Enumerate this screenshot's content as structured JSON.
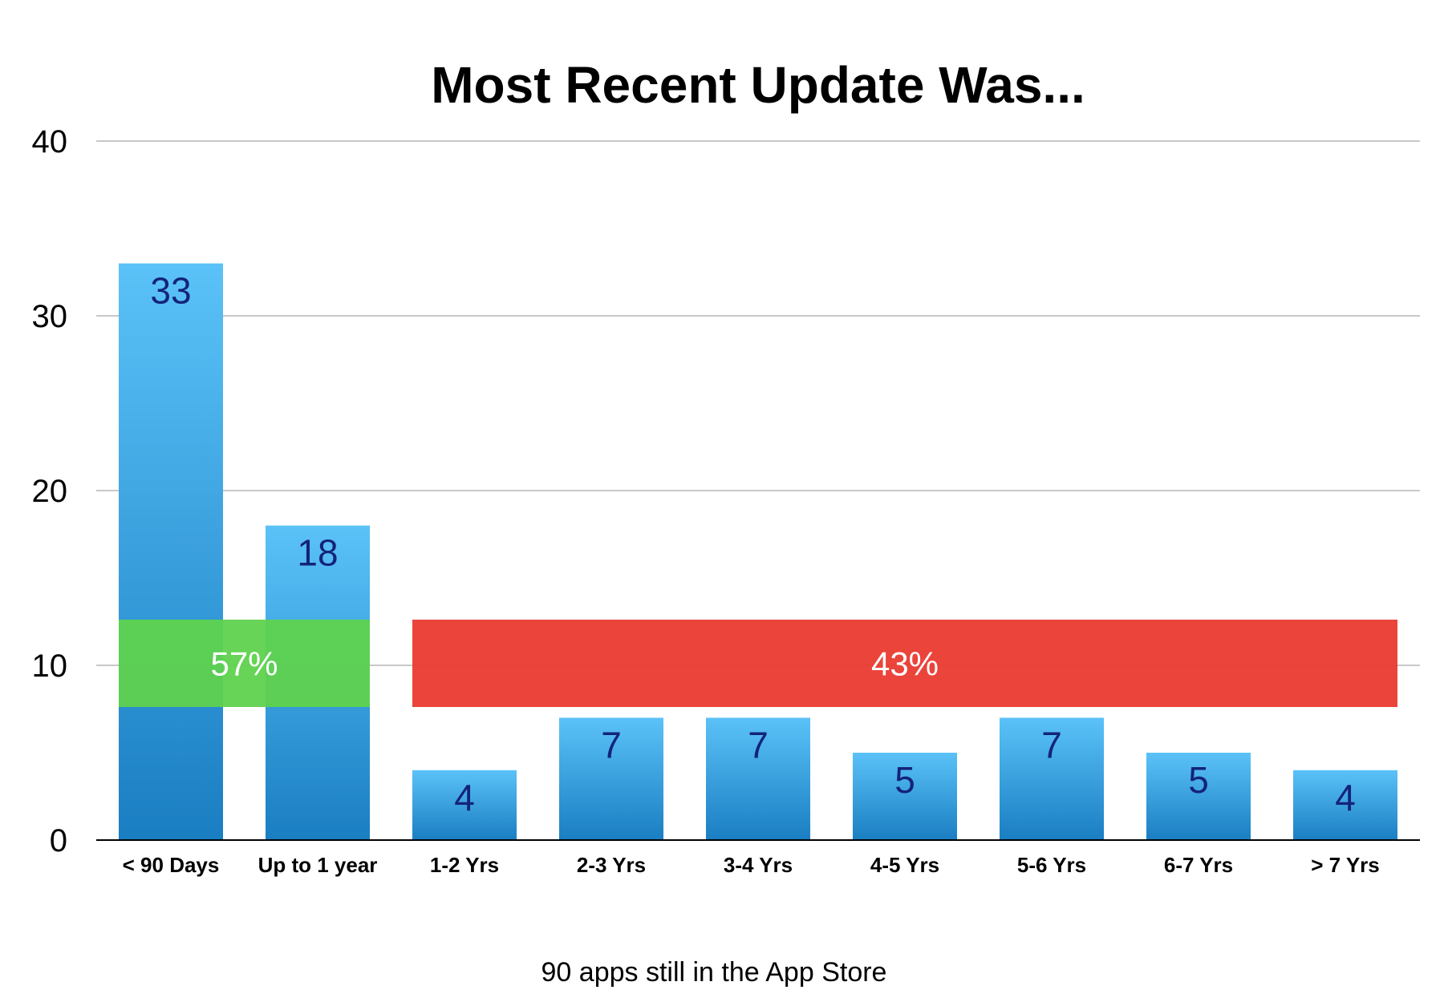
{
  "chart_data": {
    "type": "bar",
    "title": "Most Recent Update Was...",
    "categories": [
      "< 90 Days",
      "Up to 1 year",
      "1-2 Yrs",
      "2-3 Yrs",
      "3-4 Yrs",
      "4-5 Yrs",
      "5-6 Yrs",
      "6-7 Yrs",
      "> 7 Yrs"
    ],
    "values": [
      33,
      18,
      4,
      7,
      7,
      5,
      7,
      5,
      4
    ],
    "ylim": [
      0,
      40
    ],
    "yticks": [
      0,
      10,
      20,
      30,
      40
    ],
    "grid": true,
    "legend": "none",
    "annotations": [
      {
        "text": "57%",
        "spans": [
          "< 90 Days",
          "Up to 1 year"
        ],
        "color": "#5fd24e"
      },
      {
        "text": "43%",
        "spans": [
          "1-2 Yrs",
          "> 7 Yrs"
        ],
        "color": "#ea3a30"
      }
    ],
    "footnote": "90 apps still in the App Store",
    "colors": {
      "bar_top": "#5bc2f8",
      "bar_bottom": "#1a7ec2",
      "label": "#14237a"
    }
  }
}
